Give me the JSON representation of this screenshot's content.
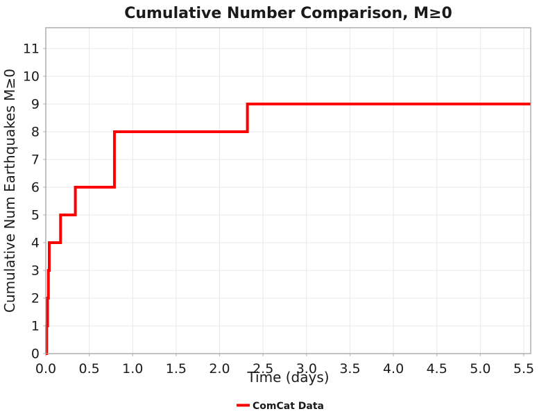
{
  "figure": {
    "background_color": "#ffffff",
    "text_color": "#1a1a1a"
  },
  "chart_data": {
    "type": "line",
    "step_mode": "post",
    "title": "Cumulative Number Comparison, M≥0",
    "xlabel": "Time (days)",
    "ylabel": "Cumulative Num Earthquakes M≥0",
    "xlim": [
      0,
      5.58
    ],
    "ylim": [
      0,
      11.75
    ],
    "xtick_labels": [
      "0.0",
      "0.5",
      "1.0",
      "1.5",
      "2.0",
      "2.5",
      "3.0",
      "3.5",
      "4.0",
      "4.5",
      "5.0",
      "5.5"
    ],
    "yticks": [
      0,
      1,
      2,
      3,
      4,
      5,
      6,
      7,
      8,
      9,
      10,
      11
    ],
    "grid": true,
    "grid_color": "#e8e8e8",
    "spine_color": "#a0a0a0",
    "tick_color": "#c0c0c0",
    "legend_position": "bottom-center",
    "legend": [
      {
        "label": "ComCat Data",
        "color": "#ff0000"
      }
    ],
    "series": [
      {
        "name": "ComCat Data",
        "color": "#ff0000",
        "line_width": 4,
        "points": [
          [
            0.0,
            0
          ],
          [
            0.01,
            1
          ],
          [
            0.02,
            2
          ],
          [
            0.03,
            3
          ],
          [
            0.04,
            4
          ],
          [
            0.17,
            5
          ],
          [
            0.34,
            6
          ],
          [
            0.79,
            7
          ],
          [
            0.79,
            8
          ],
          [
            2.32,
            9
          ],
          [
            5.58,
            9
          ]
        ]
      }
    ]
  }
}
